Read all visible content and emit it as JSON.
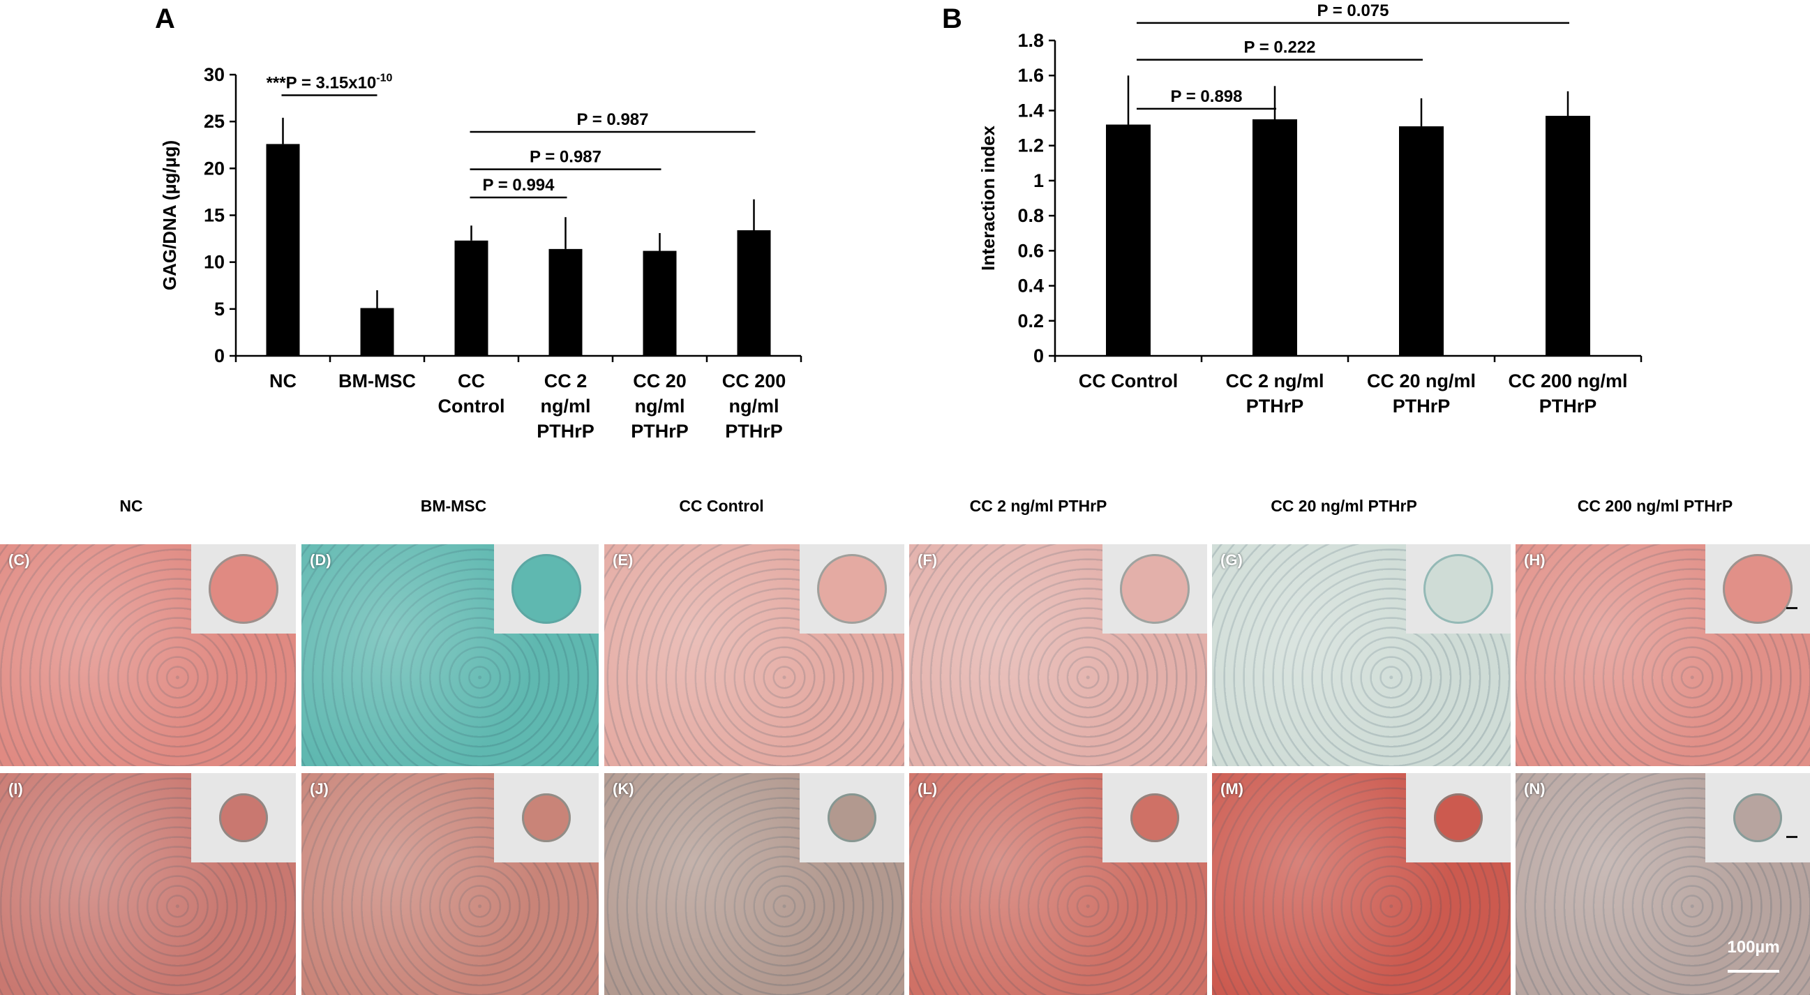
{
  "charts": {
    "A": {
      "panel_letter": "A",
      "ylabel": "GAG/DNA (µg/µg)",
      "yticks": [
        "0",
        "5",
        "10",
        "15",
        "20",
        "25",
        "30"
      ]
    },
    "B": {
      "panel_letter": "B",
      "ylabel": "Interaction index",
      "yticks": [
        "0",
        "0.2",
        "0.4",
        "0.6",
        "0.8",
        "1",
        "1.2",
        "1.4",
        "1.6",
        "1.8"
      ]
    }
  },
  "chart_data": [
    {
      "id": "A",
      "type": "bar",
      "categories": [
        "NC",
        "BM-MSC",
        "CC Control",
        "CC 2 ng/ml PTHrP",
        "CC 20 ng/ml PTHrP",
        "CC 200 ng/ml PTHrP"
      ],
      "category_lines": [
        [
          "NC"
        ],
        [
          "BM-MSC"
        ],
        [
          "CC",
          "Control"
        ],
        [
          "CC 2",
          "ng/ml",
          "PTHrP"
        ],
        [
          "CC 20",
          "ng/ml",
          "PTHrP"
        ],
        [
          "CC 200",
          "ng/ml",
          "PTHrP"
        ]
      ],
      "values": [
        22.6,
        5.1,
        12.3,
        11.4,
        11.2,
        13.4
      ],
      "errors": [
        2.8,
        1.9,
        1.6,
        3.4,
        1.9,
        3.3
      ],
      "ylabel": "GAG/DNA (µg/µg)",
      "ylim": [
        0,
        30
      ],
      "ytick_values": [
        0,
        5,
        10,
        15,
        20,
        25,
        30
      ],
      "bar_color": "#000000",
      "annotations": [
        {
          "from": 0,
          "to": 1,
          "y": 27.8,
          "label": "***P = 3.15x10",
          "superscript": "-10"
        },
        {
          "from": 2,
          "to": 3,
          "y": 16.9,
          "label": "P = 0.994"
        },
        {
          "from": 2,
          "to": 4,
          "y": 19.9,
          "label": "P = 0.987"
        },
        {
          "from": 2,
          "to": 5,
          "y": 23.9,
          "label": "P = 0.987"
        }
      ]
    },
    {
      "id": "B",
      "type": "bar",
      "categories": [
        "CC Control",
        "CC 2 ng/ml PTHrP",
        "CC 20 ng/ml PTHrP",
        "CC 200 ng/ml PTHrP"
      ],
      "category_lines": [
        [
          "CC Control"
        ],
        [
          "CC 2 ng/ml",
          "PTHrP"
        ],
        [
          "CC 20 ng/ml",
          "PTHrP"
        ],
        [
          "CC 200 ng/ml",
          "PTHrP"
        ]
      ],
      "values": [
        1.32,
        1.35,
        1.31,
        1.37
      ],
      "errors": [
        0.28,
        0.19,
        0.16,
        0.14
      ],
      "ylabel": "Interaction index",
      "ylim": [
        0,
        1.8
      ],
      "ytick_values": [
        0,
        0.2,
        0.4,
        0.6,
        0.8,
        1,
        1.2,
        1.4,
        1.6,
        1.8
      ],
      "bar_color": "#000000",
      "annotations": [
        {
          "from": 0,
          "to": 1,
          "y": 1.41,
          "label": "P = 0.898"
        },
        {
          "from": 0,
          "to": 2,
          "y": 1.69,
          "label": "P = 0.222"
        },
        {
          "from": 0,
          "to": 3,
          "y": 1.9,
          "label": "P = 0.075"
        }
      ]
    }
  ],
  "histology": {
    "column_headers": [
      "NC",
      "BM-MSC",
      "CC Control",
      "CC 2 ng/ml PTHrP",
      "CC 20 ng/ml PTHrP",
      "CC 200 ng/ml PTHrP"
    ],
    "row1_labels": [
      "(C)",
      "(D)",
      "(E)",
      "(F)",
      "(G)",
      "(H)"
    ],
    "row2_labels": [
      "(I)",
      "(J)",
      "(K)",
      "(L)",
      "(M)",
      "(N)"
    ],
    "row1_colors": [
      "#e08a82",
      "#5fb8b0",
      "#e4aaa2",
      "#e3b0aa",
      "#cfdcd6",
      "#e19088"
    ],
    "row2_colors": [
      "#c97870",
      "#c98478",
      "#b2998f",
      "#cf7166",
      "#cc5a4f",
      "#b7a49f"
    ],
    "scale_label": "100µm"
  }
}
